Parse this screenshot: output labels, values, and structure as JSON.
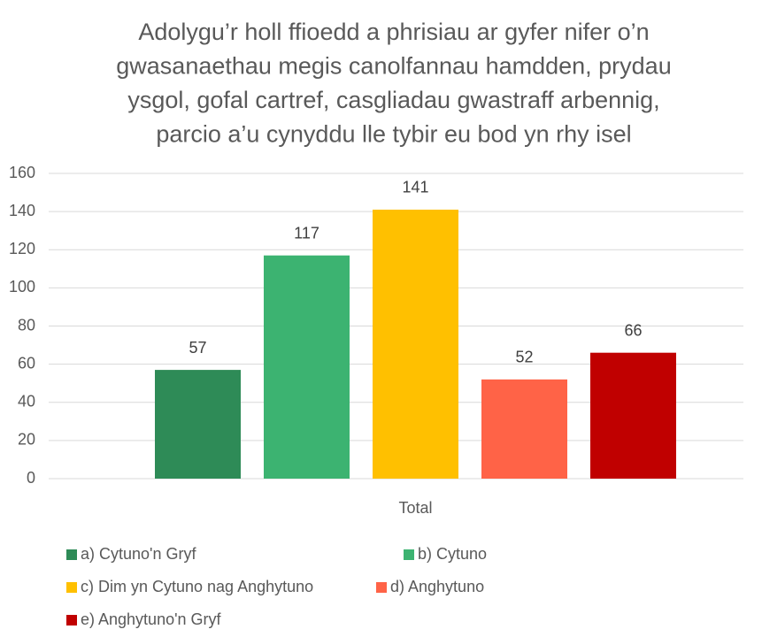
{
  "chart_data": {
    "type": "bar",
    "title": [
      "Adolygu’r holl ffioedd a phrisiau ar gyfer nifer o’n",
      "gwasanaethau megis canolfannau hamdden, prydau",
      "ysgol, gofal cartref, casgliadau gwastraff arbennig,",
      "parcio a’u cynyddu lle tybir eu bod yn rhy isel"
    ],
    "categories": [
      "Total"
    ],
    "series": [
      {
        "name": "a) Cytuno'n Gryf",
        "color": "#2e8b57",
        "values": [
          57
        ]
      },
      {
        "name": "b) Cytuno",
        "color": "#3cb371",
        "values": [
          117
        ]
      },
      {
        "name": "c) Dim yn Cytuno nag Anghytuno",
        "color": "#ffc000",
        "values": [
          141
        ]
      },
      {
        "name": "d) Anghytuno",
        "color": "#ff6347",
        "values": [
          52
        ]
      },
      {
        "name": "e) Anghytuno'n Gryf",
        "color": "#c00000",
        "values": [
          66
        ]
      }
    ],
    "ylim": [
      0,
      160
    ],
    "yticks": [
      0,
      20,
      40,
      60,
      80,
      100,
      120,
      140,
      160
    ],
    "grid": true,
    "legend": "bottom"
  }
}
